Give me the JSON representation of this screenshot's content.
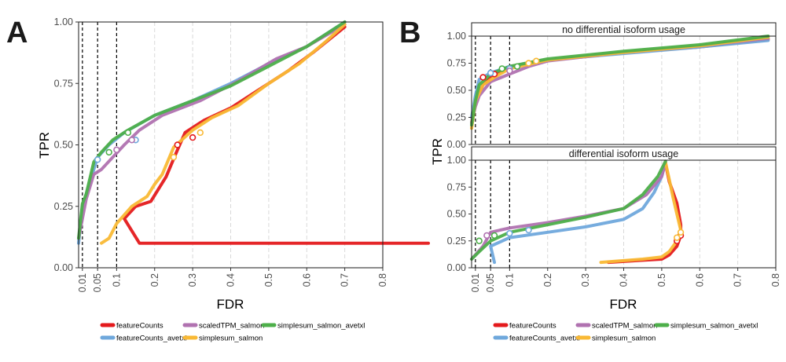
{
  "panels": [
    {
      "letter": "A",
      "facets": [
        {
          "strip": "",
          "ylim": [
            0.0,
            1.0
          ],
          "yticks": [
            "0.00",
            "0.25",
            "0.50",
            "0.75",
            "1.00"
          ],
          "curves": {
            "featureCounts": [
              [
                0.92,
                0.1
              ],
              [
                0.16,
                0.1
              ],
              [
                0.12,
                0.2
              ],
              [
                0.15,
                0.25
              ],
              [
                0.19,
                0.27
              ],
              [
                0.21,
                0.32
              ],
              [
                0.23,
                0.37
              ],
              [
                0.26,
                0.48
              ],
              [
                0.28,
                0.55
              ],
              [
                0.33,
                0.6
              ],
              [
                0.4,
                0.65
              ],
              [
                0.47,
                0.72
              ],
              [
                0.55,
                0.8
              ],
              [
                0.62,
                0.88
              ],
              [
                0.7,
                0.98
              ]
            ],
            "featureCounts_avetxl": [
              [
                0.0,
                0.1
              ],
              [
                0.01,
                0.25
              ],
              [
                0.03,
                0.35
              ],
              [
                0.05,
                0.45
              ],
              [
                0.08,
                0.5
              ],
              [
                0.12,
                0.55
              ],
              [
                0.2,
                0.62
              ],
              [
                0.3,
                0.68
              ],
              [
                0.4,
                0.75
              ],
              [
                0.5,
                0.83
              ],
              [
                0.6,
                0.9
              ],
              [
                0.7,
                1.0
              ]
            ],
            "scaledTPM_salmon": [
              [
                0.0,
                0.12
              ],
              [
                0.02,
                0.28
              ],
              [
                0.04,
                0.38
              ],
              [
                0.06,
                0.4
              ],
              [
                0.09,
                0.45
              ],
              [
                0.12,
                0.5
              ],
              [
                0.16,
                0.56
              ],
              [
                0.22,
                0.62
              ],
              [
                0.32,
                0.68
              ],
              [
                0.42,
                0.76
              ],
              [
                0.52,
                0.85
              ],
              [
                0.6,
                0.9
              ],
              [
                0.7,
                0.99
              ]
            ],
            "simplesum_salmon": [
              [
                0.06,
                0.1
              ],
              [
                0.08,
                0.12
              ],
              [
                0.1,
                0.18
              ],
              [
                0.14,
                0.25
              ],
              [
                0.18,
                0.29
              ],
              [
                0.2,
                0.34
              ],
              [
                0.22,
                0.38
              ],
              [
                0.25,
                0.49
              ],
              [
                0.3,
                0.56
              ],
              [
                0.35,
                0.61
              ],
              [
                0.42,
                0.66
              ],
              [
                0.5,
                0.75
              ],
              [
                0.58,
                0.83
              ],
              [
                0.65,
                0.92
              ],
              [
                0.7,
                0.99
              ]
            ],
            "simplesum_salmon_avetxl": [
              [
                0.0,
                0.12
              ],
              [
                0.01,
                0.26
              ],
              [
                0.02,
                0.3
              ],
              [
                0.04,
                0.43
              ],
              [
                0.06,
                0.47
              ],
              [
                0.09,
                0.52
              ],
              [
                0.13,
                0.56
              ],
              [
                0.2,
                0.62
              ],
              [
                0.3,
                0.68
              ],
              [
                0.4,
                0.74
              ],
              [
                0.5,
                0.82
              ],
              [
                0.6,
                0.9
              ],
              [
                0.7,
                1.0
              ]
            ]
          },
          "markers": {
            "featureCounts": [
              [
                0.26,
                0.5
              ],
              [
                0.3,
                0.53
              ]
            ],
            "featureCounts_avetxl": [
              [
                0.05,
                0.44
              ],
              [
                0.15,
                0.52
              ]
            ],
            "scaledTPM_salmon": [
              [
                0.1,
                0.48
              ],
              [
                0.14,
                0.52
              ]
            ],
            "simplesum_salmon": [
              [
                0.25,
                0.45
              ],
              [
                0.32,
                0.55
              ]
            ],
            "simplesum_salmon_avetxl": [
              [
                0.08,
                0.47
              ],
              [
                0.13,
                0.55
              ]
            ]
          }
        }
      ]
    },
    {
      "letter": "B",
      "facets": [
        {
          "strip": "no differential isoform usage",
          "ylim": [
            0.0,
            1.0
          ],
          "yticks": [
            "0.00",
            "0.25",
            "0.50",
            "0.75",
            "1.00"
          ],
          "curves": {
            "featureCounts": [
              [
                0.0,
                0.2
              ],
              [
                0.01,
                0.4
              ],
              [
                0.03,
                0.55
              ],
              [
                0.05,
                0.62
              ],
              [
                0.1,
                0.72
              ],
              [
                0.2,
                0.78
              ],
              [
                0.4,
                0.85
              ],
              [
                0.6,
                0.9
              ],
              [
                0.78,
                0.97
              ]
            ],
            "featureCounts_avetxl": [
              [
                0.0,
                0.25
              ],
              [
                0.01,
                0.45
              ],
              [
                0.02,
                0.6
              ],
              [
                0.05,
                0.66
              ],
              [
                0.1,
                0.72
              ],
              [
                0.2,
                0.78
              ],
              [
                0.4,
                0.84
              ],
              [
                0.6,
                0.9
              ],
              [
                0.78,
                0.96
              ]
            ],
            "scaledTPM_salmon": [
              [
                0.0,
                0.2
              ],
              [
                0.01,
                0.35
              ],
              [
                0.02,
                0.45
              ],
              [
                0.05,
                0.58
              ],
              [
                0.1,
                0.65
              ],
              [
                0.15,
                0.72
              ],
              [
                0.2,
                0.77
              ],
              [
                0.4,
                0.85
              ],
              [
                0.6,
                0.91
              ],
              [
                0.78,
                0.98
              ]
            ],
            "simplesum_salmon": [
              [
                0.0,
                0.15
              ],
              [
                0.01,
                0.4
              ],
              [
                0.03,
                0.55
              ],
              [
                0.06,
                0.62
              ],
              [
                0.1,
                0.7
              ],
              [
                0.2,
                0.78
              ],
              [
                0.4,
                0.85
              ],
              [
                0.6,
                0.91
              ],
              [
                0.78,
                0.99
              ]
            ],
            "simplesum_salmon_avetxl": [
              [
                0.0,
                0.18
              ],
              [
                0.01,
                0.4
              ],
              [
                0.02,
                0.55
              ],
              [
                0.05,
                0.65
              ],
              [
                0.1,
                0.72
              ],
              [
                0.2,
                0.79
              ],
              [
                0.4,
                0.86
              ],
              [
                0.6,
                0.92
              ],
              [
                0.78,
                1.0
              ]
            ]
          },
          "markers": {
            "featureCounts": [
              [
                0.03,
                0.62
              ],
              [
                0.06,
                0.65
              ]
            ],
            "featureCounts_avetxl": [
              [
                0.05,
                0.66
              ],
              [
                0.1,
                0.7
              ]
            ],
            "scaledTPM_salmon": [
              [
                0.1,
                0.68
              ]
            ],
            "simplesum_salmon": [
              [
                0.15,
                0.75
              ],
              [
                0.17,
                0.77
              ]
            ],
            "simplesum_salmon_avetxl": [
              [
                0.08,
                0.7
              ],
              [
                0.12,
                0.72
              ]
            ]
          }
        },
        {
          "strip": "differential isoform usage",
          "ylim": [
            0.0,
            1.0
          ],
          "yticks": [
            "0.00",
            "0.25",
            "0.50",
            "0.75",
            "1.00"
          ],
          "curves": {
            "featureCounts": [
              [
                0.36,
                0.05
              ],
              [
                0.45,
                0.07
              ],
              [
                0.5,
                0.08
              ],
              [
                0.52,
                0.12
              ],
              [
                0.54,
                0.2
              ],
              [
                0.55,
                0.3
              ],
              [
                0.55,
                0.4
              ],
              [
                0.54,
                0.6
              ],
              [
                0.52,
                0.8
              ],
              [
                0.51,
                0.97
              ]
            ],
            "featureCounts_avetxl": [
              [
                0.06,
                0.05
              ],
              [
                0.05,
                0.2
              ],
              [
                0.1,
                0.28
              ],
              [
                0.2,
                0.33
              ],
              [
                0.3,
                0.38
              ],
              [
                0.4,
                0.45
              ],
              [
                0.45,
                0.55
              ],
              [
                0.48,
                0.7
              ],
              [
                0.5,
                0.85
              ],
              [
                0.51,
                0.98
              ]
            ],
            "scaledTPM_salmon": [
              [
                0.0,
                0.08
              ],
              [
                0.03,
                0.2
              ],
              [
                0.05,
                0.33
              ],
              [
                0.1,
                0.37
              ],
              [
                0.2,
                0.42
              ],
              [
                0.3,
                0.48
              ],
              [
                0.4,
                0.55
              ],
              [
                0.46,
                0.68
              ],
              [
                0.5,
                0.85
              ],
              [
                0.51,
                0.98
              ]
            ],
            "simplesum_salmon": [
              [
                0.34,
                0.05
              ],
              [
                0.45,
                0.08
              ],
              [
                0.5,
                0.1
              ],
              [
                0.52,
                0.15
              ],
              [
                0.54,
                0.25
              ],
              [
                0.55,
                0.35
              ],
              [
                0.54,
                0.5
              ],
              [
                0.53,
                0.65
              ],
              [
                0.52,
                0.82
              ],
              [
                0.51,
                0.98
              ]
            ],
            "simplesum_salmon_avetxl": [
              [
                0.0,
                0.08
              ],
              [
                0.02,
                0.15
              ],
              [
                0.05,
                0.25
              ],
              [
                0.1,
                0.33
              ],
              [
                0.2,
                0.4
              ],
              [
                0.3,
                0.47
              ],
              [
                0.4,
                0.55
              ],
              [
                0.45,
                0.68
              ],
              [
                0.49,
                0.85
              ],
              [
                0.51,
                0.99
              ]
            ]
          },
          "markers": {
            "featureCounts": [
              [
                0.54,
                0.25
              ],
              [
                0.55,
                0.3
              ]
            ],
            "featureCounts_avetxl": [
              [
                0.1,
                0.32
              ],
              [
                0.15,
                0.35
              ]
            ],
            "scaledTPM_salmon": [
              [
                0.04,
                0.3
              ]
            ],
            "simplesum_salmon": [
              [
                0.54,
                0.28
              ],
              [
                0.55,
                0.33
              ]
            ],
            "simplesum_salmon_avetxl": [
              [
                0.02,
                0.25
              ],
              [
                0.06,
                0.3
              ]
            ]
          }
        }
      ]
    }
  ],
  "chart_data": {
    "type": "line",
    "xlabel": "FDR",
    "ylabel": "TPR",
    "xlim": [
      0.0,
      0.8
    ],
    "xticks": [
      "0.01",
      "0.05",
      "0.1",
      "0.2",
      "0.3",
      "0.4",
      "0.5",
      "0.6",
      "0.7",
      "0.8"
    ],
    "fdr_thresholds": [
      0.01,
      0.05,
      0.1
    ],
    "grid": "vertical-dashed",
    "legend_position": "bottom",
    "series": [
      {
        "key": "featureCounts",
        "name": "featureCounts",
        "color": "#e41a1c"
      },
      {
        "key": "featureCounts_avetxl",
        "name": "featureCounts_avetxl",
        "color": "#6fa8dc"
      },
      {
        "key": "scaledTPM_salmon",
        "name": "scaledTPM_salmon",
        "color": "#b072b0"
      },
      {
        "key": "simplesum_salmon",
        "name": "simplesum_salmon",
        "color": "#f9b935"
      },
      {
        "key": "simplesum_salmon_avetxl",
        "name": "simplesum_salmon_avetxl",
        "color": "#4daf4a"
      }
    ]
  }
}
